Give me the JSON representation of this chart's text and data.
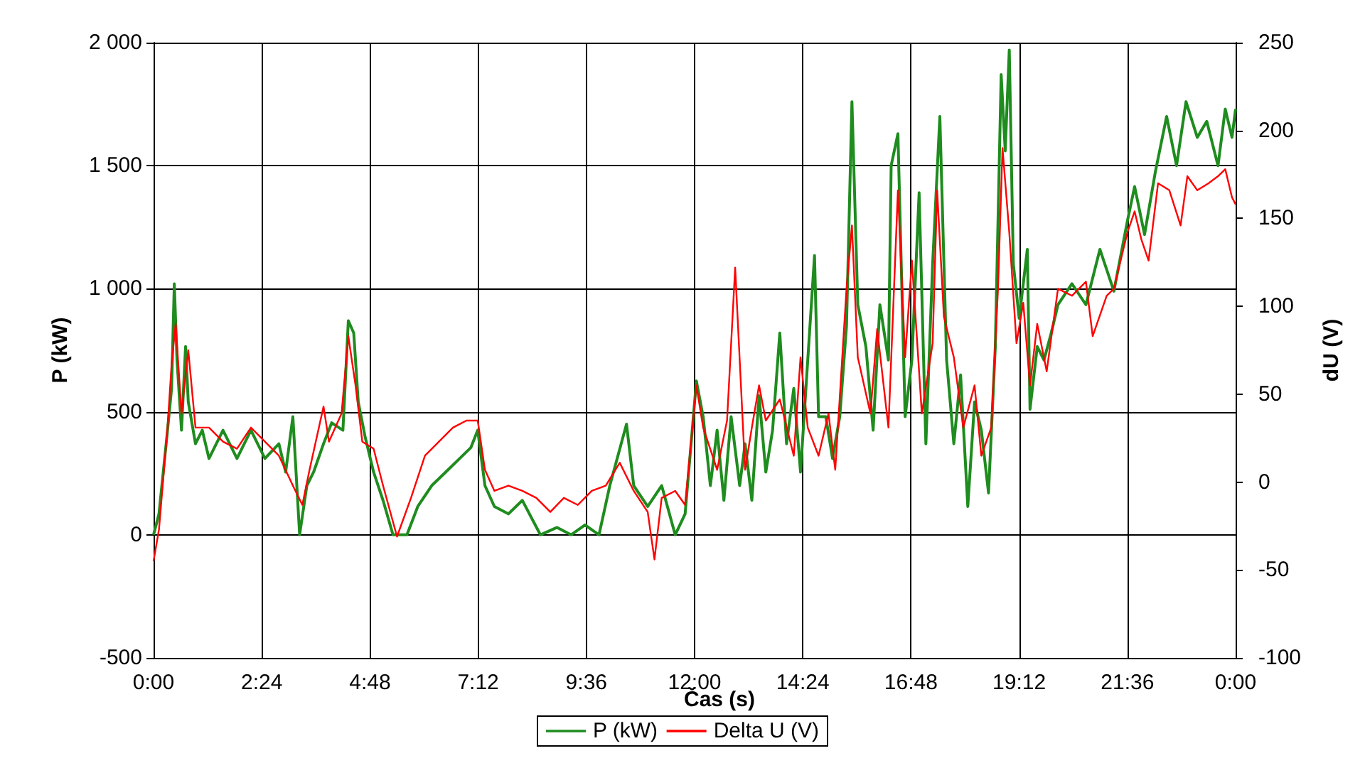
{
  "chart_data": {
    "type": "line",
    "xlabel": "Čas (s)",
    "ylabel": "P (kW)",
    "y2label": "dU (V)",
    "xlim": [
      0,
      24
    ],
    "xticks": [
      {
        "value": 0,
        "label": "0:00"
      },
      {
        "value": 2.4,
        "label": "2:24"
      },
      {
        "value": 4.8,
        "label": "4:48"
      },
      {
        "value": 7.2,
        "label": "7:12"
      },
      {
        "value": 9.6,
        "label": "9:36"
      },
      {
        "value": 12,
        "label": "12:00"
      },
      {
        "value": 14.4,
        "label": "14:24"
      },
      {
        "value": 16.8,
        "label": "16:48"
      },
      {
        "value": 19.2,
        "label": "19:12"
      },
      {
        "value": 21.6,
        "label": "21:36"
      },
      {
        "value": 24,
        "label": "0:00"
      }
    ],
    "ylim": [
      -500,
      2000
    ],
    "yticks": [
      -500,
      0,
      500,
      {
        "value": 1000,
        "label": "1 000"
      },
      {
        "value": 1500,
        "label": "1 500"
      },
      {
        "value": 2000,
        "label": "2 000"
      }
    ],
    "y2lim": [
      -100,
      250
    ],
    "y2ticks": [
      -100,
      -50,
      0,
      50,
      100,
      150,
      200,
      250
    ],
    "grid": true,
    "legend": "bottom",
    "marker": "none",
    "line_style": "solid",
    "series": [
      {
        "name": "P (kW)",
        "color": "#1e8c1e",
        "x": [
          0,
          0.12,
          0.31,
          0.4,
          0.46,
          0.52,
          0.62,
          0.71,
          0.77,
          0.93,
          1.08,
          1.23,
          1.54,
          1.85,
          2.16,
          2.47,
          2.78,
          2.93,
          3.09,
          3.24,
          3.4,
          3.55,
          3.77,
          3.95,
          4.2,
          4.32,
          4.44,
          4.54,
          4.69,
          4.88,
          5.09,
          5.31,
          5.62,
          5.86,
          6.17,
          6.48,
          6.79,
          7.04,
          7.19,
          7.35,
          7.56,
          7.87,
          8.18,
          8.58,
          8.95,
          9.26,
          9.57,
          9.88,
          10.12,
          10.49,
          10.65,
          10.96,
          11.27,
          11.57,
          11.79,
          12.04,
          12.19,
          12.35,
          12.5,
          12.65,
          12.81,
          13.0,
          13.12,
          13.27,
          13.43,
          13.58,
          13.73,
          13.89,
          14.04,
          14.2,
          14.35,
          14.51,
          14.66,
          14.75,
          14.91,
          15.06,
          15.22,
          15.37,
          15.49,
          15.62,
          15.8,
          15.96,
          16.11,
          16.3,
          16.36,
          16.51,
          16.67,
          16.82,
          16.98,
          17.13,
          17.28,
          17.44,
          17.59,
          17.75,
          17.9,
          18.06,
          18.21,
          18.36,
          18.52,
          18.67,
          18.8,
          18.89,
          18.98,
          19.07,
          19.2,
          19.38,
          19.44,
          19.6,
          19.75,
          19.91,
          20.06,
          20.37,
          20.68,
          20.99,
          21.3,
          21.6,
          21.76,
          21.98,
          22.22,
          22.47,
          22.69,
          22.9,
          23.15,
          23.36,
          23.61,
          23.77,
          23.92,
          24.0
        ],
        "values": [
          0,
          85,
          425,
          595,
          1020,
          710,
          425,
          765,
          540,
          370,
          425,
          310,
          425,
          310,
          425,
          310,
          370,
          255,
          480,
          0,
          200,
          255,
          370,
          455,
          425,
          870,
          820,
          540,
          400,
          255,
          140,
          0,
          0,
          115,
          200,
          255,
          310,
          355,
          425,
          200,
          115,
          85,
          140,
          0,
          30,
          0,
          40,
          0,
          200,
          450,
          200,
          115,
          200,
          0,
          85,
          625,
          480,
          200,
          425,
          140,
          480,
          200,
          370,
          140,
          565,
          255,
          425,
          820,
          370,
          595,
          255,
          710,
          1135,
          480,
          480,
          310,
          480,
          850,
          1760,
          935,
          765,
          425,
          935,
          710,
          1500,
          1630,
          480,
          710,
          1390,
          370,
          1100,
          1700,
          710,
          370,
          650,
          115,
          540,
          425,
          170,
          765,
          1870,
          1560,
          1970,
          1100,
          880,
          1160,
          510,
          765,
          710,
          820,
          935,
          1020,
          935,
          1160,
          990,
          1275,
          1415,
          1220,
          1475,
          1700,
          1500,
          1760,
          1615,
          1680,
          1500,
          1730,
          1615,
          1730
        ]
      },
      {
        "name": "Delta U (V)",
        "color": "#ff0000",
        "axis": "y2",
        "x": [
          0,
          0.12,
          0.31,
          0.4,
          0.49,
          0.62,
          0.77,
          0.93,
          1.23,
          1.54,
          1.85,
          2.16,
          2.47,
          2.78,
          3.09,
          3.3,
          3.46,
          3.77,
          3.89,
          4.17,
          4.32,
          4.48,
          4.63,
          4.88,
          5.09,
          5.4,
          5.71,
          6.02,
          6.33,
          6.64,
          6.94,
          7.19,
          7.35,
          7.56,
          7.87,
          8.18,
          8.49,
          8.8,
          9.1,
          9.41,
          9.72,
          10.03,
          10.34,
          10.65,
          10.96,
          11.11,
          11.27,
          11.57,
          11.79,
          12.04,
          12.19,
          12.5,
          12.72,
          12.9,
          13.12,
          13.27,
          13.43,
          13.58,
          13.89,
          14.2,
          14.35,
          14.51,
          14.75,
          14.97,
          15.12,
          15.37,
          15.49,
          15.62,
          15.9,
          16.05,
          16.3,
          16.51,
          16.67,
          16.82,
          17.04,
          17.28,
          17.38,
          17.53,
          17.75,
          17.96,
          18.21,
          18.36,
          18.58,
          18.73,
          18.83,
          18.98,
          19.14,
          19.29,
          19.44,
          19.6,
          19.81,
          20.06,
          20.37,
          20.68,
          20.83,
          21.14,
          21.3,
          21.6,
          21.76,
          21.91,
          22.07,
          22.28,
          22.53,
          22.78,
          22.93,
          23.15,
          23.4,
          23.61,
          23.77,
          23.92,
          24.0
        ],
        "values": [
          -45,
          -27,
          31,
          67,
          90,
          39,
          75,
          31,
          31,
          23,
          19,
          31,
          23,
          15,
          -2,
          -13,
          7,
          43,
          23,
          39,
          83,
          55,
          23,
          19,
          -2,
          -31,
          -9,
          15,
          23,
          31,
          35,
          35,
          7,
          -5,
          -2,
          -5,
          -9,
          -17,
          -9,
          -13,
          -5,
          -2,
          11,
          -5,
          -17,
          -44,
          -9,
          -5,
          -13,
          55,
          31,
          7,
          35,
          122,
          7,
          31,
          55,
          35,
          47,
          15,
          71,
          31,
          15,
          39,
          7,
          110,
          146,
          71,
          39,
          87,
          31,
          166,
          71,
          126,
          39,
          79,
          166,
          94,
          71,
          31,
          55,
          15,
          31,
          110,
          190,
          142,
          79,
          102,
          55,
          90,
          63,
          110,
          106,
          114,
          83,
          106,
          110,
          142,
          154,
          138,
          126,
          170,
          166,
          146,
          174,
          166,
          170,
          174,
          178,
          162,
          158
        ]
      }
    ]
  }
}
